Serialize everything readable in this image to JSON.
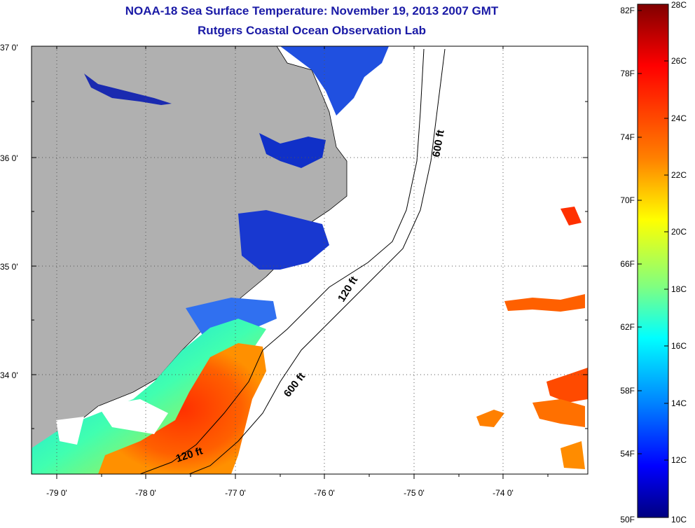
{
  "title": {
    "line1": "NOAA-18 Sea Surface Temperature:  November 19, 2013 2007 GMT",
    "line2": "Rutgers Coastal Ocean Observation Lab"
  },
  "map": {
    "latitude_labels": [
      "37 0'",
      "36 0'",
      "35 0'",
      "34 0'"
    ],
    "longitude_labels": [
      "-79 0'",
      "-78 0'",
      "-77 0'",
      "-76 0'",
      "-75 0'",
      "-74 0'"
    ],
    "contour_labels": [
      "600 ft",
      "120 ft",
      "600 ft",
      "120 ft"
    ],
    "land_color": "#b0b0b0",
    "cloud_color": "#ffffff"
  },
  "colorbar": {
    "fahrenheit_labels": [
      "82F",
      "78F",
      "74F",
      "70F",
      "66F",
      "62F",
      "58F",
      "54F",
      "50F"
    ],
    "celsius_labels": [
      "28C",
      "26C",
      "24C",
      "22C",
      "20C",
      "18C",
      "16C",
      "14C",
      "12C",
      "10C"
    ],
    "colors": [
      "#800000",
      "#ff0000",
      "#ff8000",
      "#ffff00",
      "#80ff80",
      "#00ffff",
      "#0080ff",
      "#0000ff",
      "#000080"
    ]
  }
}
